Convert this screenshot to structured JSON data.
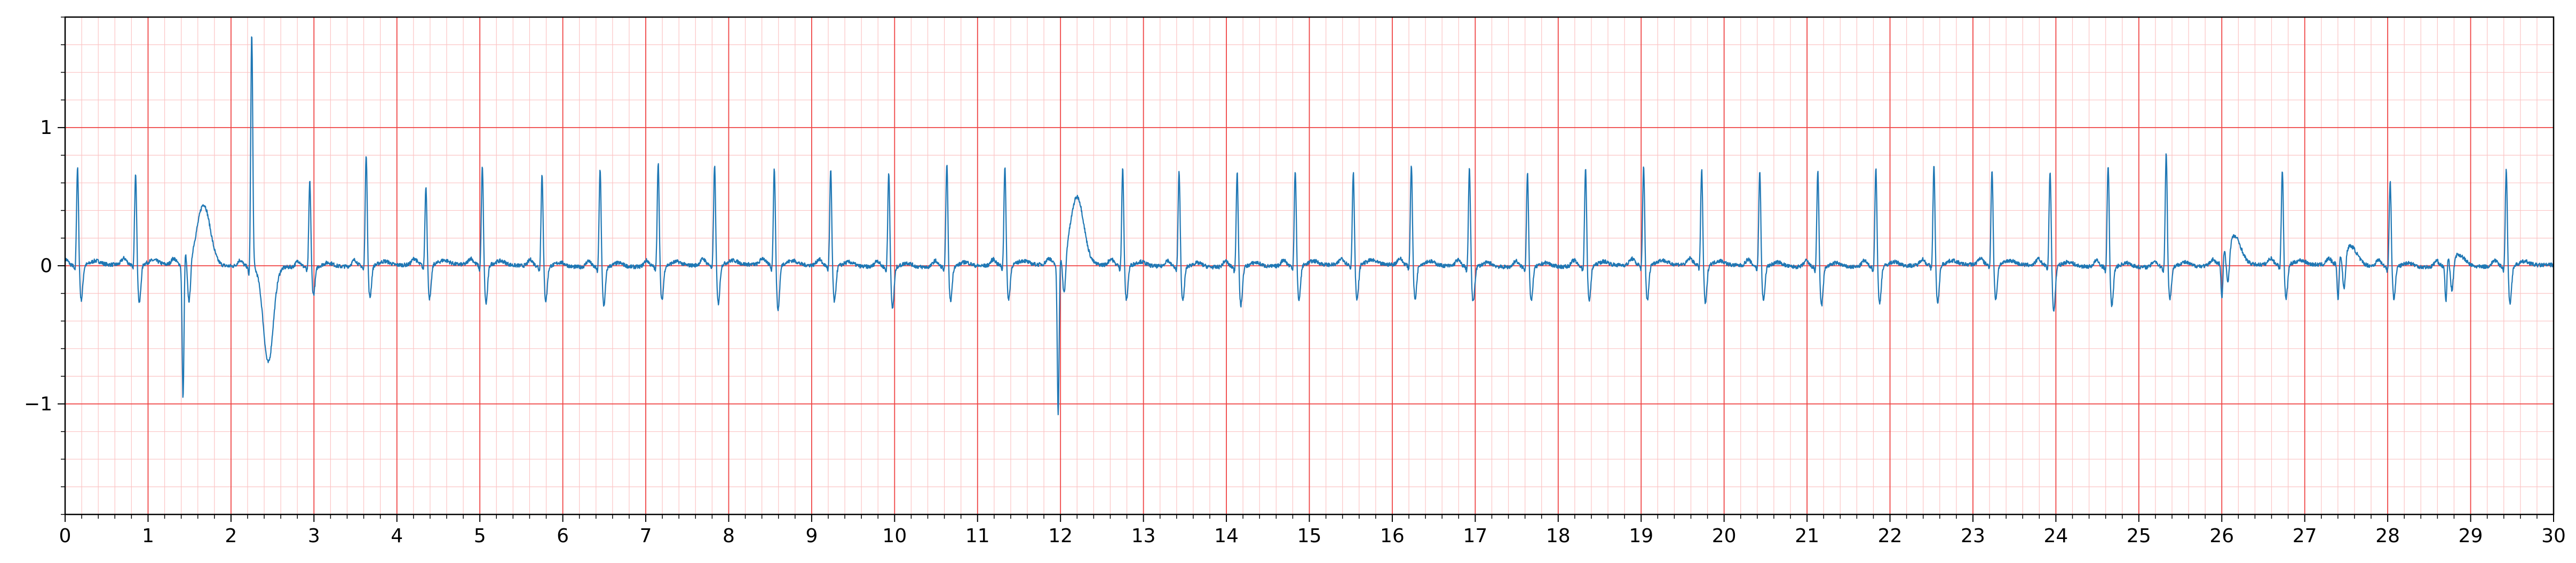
{
  "chart_data": {
    "type": "line",
    "title": "",
    "xlabel": "",
    "ylabel": "",
    "xlim": [
      0,
      30
    ],
    "ylim": [
      -1.8,
      1.8
    ],
    "x_ticks": [
      0,
      1,
      2,
      3,
      4,
      5,
      6,
      7,
      8,
      9,
      10,
      11,
      12,
      13,
      14,
      15,
      16,
      17,
      18,
      19,
      20,
      21,
      22,
      23,
      24,
      25,
      26,
      27,
      28,
      29,
      30
    ],
    "x_tick_labels": [
      "0",
      "1",
      "2",
      "3",
      "4",
      "5",
      "6",
      "7",
      "8",
      "9",
      "10",
      "11",
      "12",
      "13",
      "14",
      "15",
      "16",
      "17",
      "18",
      "19",
      "20",
      "21",
      "22",
      "23",
      "24",
      "25",
      "26",
      "27",
      "28",
      "29",
      "30"
    ],
    "y_ticks": [
      -1,
      0,
      1
    ],
    "y_tick_labels": [
      "−1",
      "0",
      "1"
    ],
    "grid": {
      "major": true,
      "minor": true,
      "major_x_step": 1,
      "major_y_step": 1,
      "minor_x_step": 0.2,
      "minor_y_step": 0.2,
      "major_color": "#ef4444",
      "minor_color": "#fbc4c4"
    },
    "line_color": "#1f77b4",
    "background_color": "#ffffff",
    "series": [
      {
        "beats": [
          {
            "x": 0.15,
            "r": 0.72,
            "q": -0.06,
            "s": -0.25
          },
          {
            "x": 0.85,
            "r": 0.68,
            "q": -0.05,
            "s": -0.28
          },
          {
            "x": 1.45,
            "r": 0.1,
            "q": -0.97,
            "s": -0.3,
            "t": 0.44,
            "t_dx": 0.22,
            "t_w": 0.08
          },
          {
            "x": 2.25,
            "r": 1.7,
            "q": -0.1,
            "s": -0.72,
            "s_dx": 0.2,
            "s_w": 0.06
          },
          {
            "x": 2.95,
            "r": 0.63,
            "q": -0.05,
            "s": -0.2
          },
          {
            "x": 3.63,
            "r": 0.82,
            "q": -0.05,
            "s": -0.23
          },
          {
            "x": 4.35,
            "r": 0.58,
            "q": -0.05,
            "s": -0.25
          },
          {
            "x": 5.03,
            "r": 0.72,
            "q": -0.06,
            "s": -0.28
          },
          {
            "x": 5.75,
            "r": 0.68,
            "q": -0.05,
            "s": -0.25
          },
          {
            "x": 6.45,
            "r": 0.72,
            "q": -0.05,
            "s": -0.28
          },
          {
            "x": 7.15,
            "r": 0.76,
            "q": -0.05,
            "s": -0.25
          },
          {
            "x": 7.83,
            "r": 0.73,
            "q": -0.05,
            "s": -0.28
          },
          {
            "x": 8.55,
            "r": 0.71,
            "q": -0.06,
            "s": -0.33
          },
          {
            "x": 9.23,
            "r": 0.7,
            "q": -0.05,
            "s": -0.26
          },
          {
            "x": 9.93,
            "r": 0.7,
            "q": -0.05,
            "s": -0.3
          },
          {
            "x": 10.63,
            "r": 0.76,
            "q": -0.05,
            "s": -0.25
          },
          {
            "x": 11.33,
            "r": 0.73,
            "q": -0.05,
            "s": -0.25
          },
          {
            "x": 12.0,
            "r": 0.05,
            "q": -1.09,
            "s": -0.28,
            "t": 0.49,
            "t_dx": 0.2,
            "t_w": 0.08
          },
          {
            "x": 12.75,
            "r": 0.71,
            "q": -0.05,
            "s": -0.25
          },
          {
            "x": 13.43,
            "r": 0.7,
            "q": -0.05,
            "s": -0.25
          },
          {
            "x": 14.13,
            "r": 0.7,
            "q": -0.05,
            "s": -0.28
          },
          {
            "x": 14.83,
            "r": 0.7,
            "q": -0.05,
            "s": -0.25
          },
          {
            "x": 15.53,
            "r": 0.68,
            "q": -0.05,
            "s": -0.26
          },
          {
            "x": 16.23,
            "r": 0.74,
            "q": -0.05,
            "s": -0.25
          },
          {
            "x": 16.93,
            "r": 0.72,
            "q": -0.05,
            "s": -0.26
          },
          {
            "x": 17.63,
            "r": 0.7,
            "q": -0.05,
            "s": -0.25
          },
          {
            "x": 18.33,
            "r": 0.72,
            "q": -0.05,
            "s": -0.25
          },
          {
            "x": 19.03,
            "r": 0.72,
            "q": -0.05,
            "s": -0.26
          },
          {
            "x": 19.73,
            "r": 0.7,
            "q": -0.05,
            "s": -0.28
          },
          {
            "x": 20.43,
            "r": 0.7,
            "q": -0.05,
            "s": -0.25
          },
          {
            "x": 21.13,
            "r": 0.71,
            "q": -0.05,
            "s": -0.28
          },
          {
            "x": 21.83,
            "r": 0.73,
            "q": -0.05,
            "s": -0.27
          },
          {
            "x": 22.53,
            "r": 0.73,
            "q": -0.05,
            "s": -0.28
          },
          {
            "x": 23.23,
            "r": 0.7,
            "q": -0.05,
            "s": -0.25
          },
          {
            "x": 23.93,
            "r": 0.7,
            "q": -0.05,
            "s": -0.33
          },
          {
            "x": 24.63,
            "r": 0.75,
            "q": -0.05,
            "s": -0.28
          },
          {
            "x": 25.33,
            "r": 0.83,
            "q": -0.05,
            "s": -0.23
          },
          {
            "x": 26.03,
            "r": 0.05,
            "q": -0.28,
            "s": -0.25,
            "t": 0.21,
            "t_dx": 0.12,
            "t_w": 0.08
          },
          {
            "x": 26.73,
            "r": 0.7,
            "q": -0.05,
            "s": -0.25
          },
          {
            "x": 27.43,
            "r": 0.04,
            "q": -0.28,
            "s": -0.25,
            "t": 0.14,
            "t_dx": 0.12,
            "t_w": 0.08
          },
          {
            "x": 28.03,
            "r": 0.63,
            "q": -0.05,
            "s": -0.23
          },
          {
            "x": 28.73,
            "r": 0.05,
            "q": -0.27,
            "s": -0.22,
            "t": 0.09,
            "t_dx": 0.12,
            "t_w": 0.08
          },
          {
            "x": 29.43,
            "r": 0.71,
            "q": -0.05,
            "s": -0.27
          }
        ]
      }
    ]
  }
}
